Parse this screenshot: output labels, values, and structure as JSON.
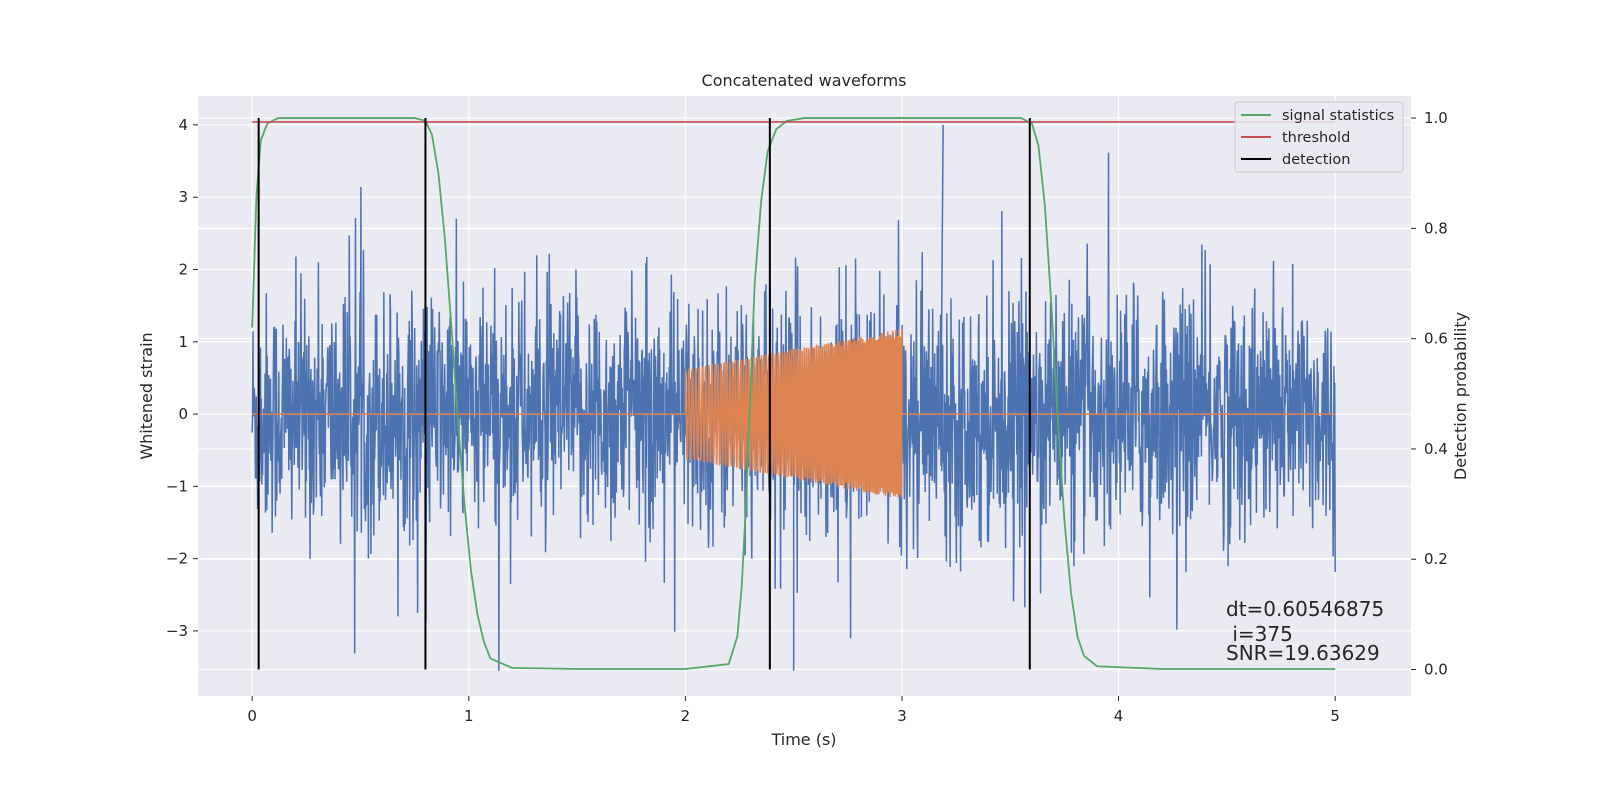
{
  "chart_data": {
    "type": "line",
    "title": "Concatenated waveforms",
    "xlabel": "Time (s)",
    "ylabel": "Whitened strain",
    "y2label": "Detection probability",
    "xlim": [
      -0.25,
      5.35
    ],
    "ylim": [
      -3.9,
      4.4
    ],
    "y2lim": [
      -0.048,
      1.04
    ],
    "xticks": [
      0,
      1,
      2,
      3,
      4,
      5
    ],
    "yticks": [
      -3,
      -2,
      -1,
      0,
      1,
      2,
      3,
      4
    ],
    "y2ticks": [
      0.0,
      0.2,
      0.4,
      0.6,
      0.8,
      1.0
    ],
    "y2tick_labels": [
      "0.0",
      "0.2",
      "0.4",
      "0.6",
      "0.8",
      "1.0"
    ],
    "grid": true,
    "legend_position": "top-right",
    "legend": [
      {
        "label": "signal statistics",
        "color": "#55a868"
      },
      {
        "label": "threshold",
        "color": "#c44e52"
      },
      {
        "label": "detection",
        "color": "#000000"
      }
    ],
    "series": [
      {
        "kind": "noise",
        "color": "#4c72b0",
        "x_range": [
          0,
          5
        ],
        "typical_amplitude": 1.5,
        "max": 4.0,
        "min": -3.55
      },
      {
        "kind": "chirp",
        "color": "#dd8452",
        "x_range": [
          0,
          5
        ],
        "active_range": [
          2.0,
          3.0
        ],
        "amplitude_start": 0.62,
        "amplitude_end": 1.18
      },
      {
        "name": "signal statistics",
        "axis": "right",
        "color": "#55a868",
        "x": [
          0.0,
          0.02,
          0.04,
          0.07,
          0.12,
          0.2,
          0.5,
          0.75,
          0.8,
          0.83,
          0.86,
          0.89,
          0.92,
          0.95,
          0.98,
          1.01,
          1.04,
          1.07,
          1.1,
          1.2,
          1.5,
          2.0,
          2.2,
          2.24,
          2.26,
          2.28,
          2.3,
          2.32,
          2.35,
          2.38,
          2.42,
          2.47,
          2.55,
          2.8,
          3.2,
          3.55,
          3.6,
          3.63,
          3.66,
          3.69,
          3.72,
          3.75,
          3.78,
          3.81,
          3.84,
          3.9,
          4.2,
          5.0
        ],
        "y": [
          0.62,
          0.86,
          0.96,
          0.99,
          1.0,
          1.0,
          1.0,
          1.0,
          0.995,
          0.97,
          0.9,
          0.78,
          0.62,
          0.45,
          0.3,
          0.18,
          0.1,
          0.05,
          0.02,
          0.003,
          0.001,
          0.001,
          0.01,
          0.06,
          0.15,
          0.3,
          0.5,
          0.7,
          0.85,
          0.94,
          0.98,
          0.995,
          1.0,
          1.0,
          1.0,
          1.0,
          0.99,
          0.95,
          0.84,
          0.66,
          0.45,
          0.27,
          0.14,
          0.06,
          0.025,
          0.006,
          0.001,
          0.001
        ]
      },
      {
        "name": "threshold",
        "axis": "right",
        "color": "#c44e52",
        "x": [
          0.0,
          5.0
        ],
        "y": [
          0.993,
          0.993
        ]
      },
      {
        "name": "detection",
        "axis": "right",
        "color": "#000000",
        "x_values": [
          0.03,
          0.8,
          2.39,
          3.59
        ],
        "y_range": [
          0.0,
          1.0
        ]
      }
    ],
    "annotations": [
      "dt=0.60546875",
      " i=375",
      "SNR=19.63629"
    ]
  }
}
